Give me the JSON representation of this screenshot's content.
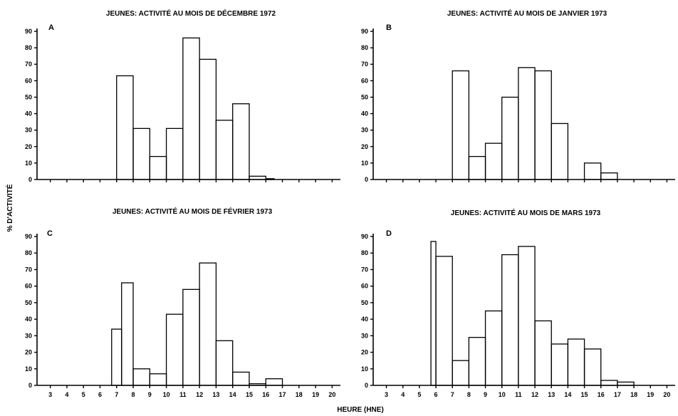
{
  "figure": {
    "ylabel": "% D'ACTIVITÉ",
    "xlabel": "HEURE (HNE)"
  },
  "chart_data": [
    {
      "type": "bar",
      "panel": "A",
      "title": "JEUNES: ACTIVITÉ AU MOIS DE DÉCEMBRE 1972",
      "x_ticks": [
        3,
        4,
        5,
        6,
        7,
        8,
        9,
        10,
        11,
        12,
        13,
        14,
        15,
        16,
        17,
        18,
        19,
        20
      ],
      "y_ticks": [
        0,
        10,
        20,
        30,
        40,
        50,
        60,
        70,
        80,
        90
      ],
      "xlim": [
        2.2,
        20.5
      ],
      "ylim": [
        0,
        95
      ],
      "bars": [
        {
          "start": 7,
          "end": 8,
          "value": 63
        },
        {
          "start": 8,
          "end": 9,
          "value": 31
        },
        {
          "start": 9,
          "end": 10,
          "value": 14
        },
        {
          "start": 10,
          "end": 11,
          "value": 31
        },
        {
          "start": 11,
          "end": 12,
          "value": 86
        },
        {
          "start": 12,
          "end": 13,
          "value": 73
        },
        {
          "start": 13,
          "end": 14,
          "value": 36
        },
        {
          "start": 14,
          "end": 15,
          "value": 46
        },
        {
          "start": 15,
          "end": 16,
          "value": 2
        },
        {
          "start": 16,
          "end": 16.5,
          "value": 0.5
        }
      ]
    },
    {
      "type": "bar",
      "panel": "B",
      "title": "JEUNES: ACTIVITÉ AU MOIS DE JANVIER 1973",
      "x_ticks": [
        3,
        4,
        5,
        6,
        7,
        8,
        9,
        10,
        11,
        12,
        13,
        14,
        15,
        16,
        17,
        18,
        19,
        20
      ],
      "y_ticks": [
        0,
        10,
        20,
        30,
        40,
        50,
        60,
        70,
        80,
        90
      ],
      "xlim": [
        2.2,
        20.5
      ],
      "ylim": [
        0,
        95
      ],
      "bars": [
        {
          "start": 7,
          "end": 8,
          "value": 66
        },
        {
          "start": 8,
          "end": 9,
          "value": 14
        },
        {
          "start": 9,
          "end": 10,
          "value": 22
        },
        {
          "start": 10,
          "end": 11,
          "value": 50
        },
        {
          "start": 11,
          "end": 12,
          "value": 68
        },
        {
          "start": 12,
          "end": 13,
          "value": 66
        },
        {
          "start": 13,
          "end": 14,
          "value": 34
        },
        {
          "start": 15,
          "end": 16,
          "value": 10
        },
        {
          "start": 16,
          "end": 17,
          "value": 4
        }
      ]
    },
    {
      "type": "bar",
      "panel": "C",
      "title": "JEUNES: ACTIVITÉ AU MOIS DE FÉVRIER 1973",
      "x_ticks": [
        3,
        4,
        5,
        6,
        7,
        8,
        9,
        10,
        11,
        12,
        13,
        14,
        15,
        16,
        17,
        18,
        19,
        20
      ],
      "y_ticks": [
        0,
        10,
        20,
        30,
        40,
        50,
        60,
        70,
        80,
        90
      ],
      "xlim": [
        2.2,
        20.5
      ],
      "ylim": [
        0,
        95
      ],
      "bars": [
        {
          "start": 6.7,
          "end": 7.3,
          "value": 34
        },
        {
          "start": 7.3,
          "end": 8,
          "value": 62
        },
        {
          "start": 8,
          "end": 9,
          "value": 10
        },
        {
          "start": 9,
          "end": 10,
          "value": 7
        },
        {
          "start": 10,
          "end": 11,
          "value": 43
        },
        {
          "start": 11,
          "end": 12,
          "value": 58
        },
        {
          "start": 12,
          "end": 13,
          "value": 74
        },
        {
          "start": 13,
          "end": 14,
          "value": 27
        },
        {
          "start": 14,
          "end": 15,
          "value": 8
        },
        {
          "start": 15,
          "end": 16,
          "value": 1
        },
        {
          "start": 16,
          "end": 17,
          "value": 4
        }
      ]
    },
    {
      "type": "bar",
      "panel": "D",
      "title": "JEUNES: ACTIVITÉ AU MOIS DE MARS 1973",
      "x_ticks": [
        3,
        4,
        5,
        6,
        7,
        8,
        9,
        10,
        11,
        12,
        13,
        14,
        15,
        16,
        17,
        18,
        19,
        20
      ],
      "y_ticks": [
        0,
        10,
        20,
        30,
        40,
        50,
        60,
        70,
        80,
        90
      ],
      "xlim": [
        2.2,
        20.5
      ],
      "ylim": [
        0,
        95
      ],
      "bars": [
        {
          "start": 5.7,
          "end": 6.0,
          "value": 87
        },
        {
          "start": 6.0,
          "end": 7,
          "value": 78
        },
        {
          "start": 7,
          "end": 8,
          "value": 15
        },
        {
          "start": 8,
          "end": 9,
          "value": 29
        },
        {
          "start": 9,
          "end": 10,
          "value": 45
        },
        {
          "start": 10,
          "end": 11,
          "value": 79
        },
        {
          "start": 11,
          "end": 12,
          "value": 84
        },
        {
          "start": 12,
          "end": 13,
          "value": 39
        },
        {
          "start": 13,
          "end": 14,
          "value": 25
        },
        {
          "start": 14,
          "end": 15,
          "value": 28
        },
        {
          "start": 15,
          "end": 16,
          "value": 22
        },
        {
          "start": 16,
          "end": 17,
          "value": 3
        },
        {
          "start": 17,
          "end": 18,
          "value": 2
        }
      ]
    }
  ]
}
